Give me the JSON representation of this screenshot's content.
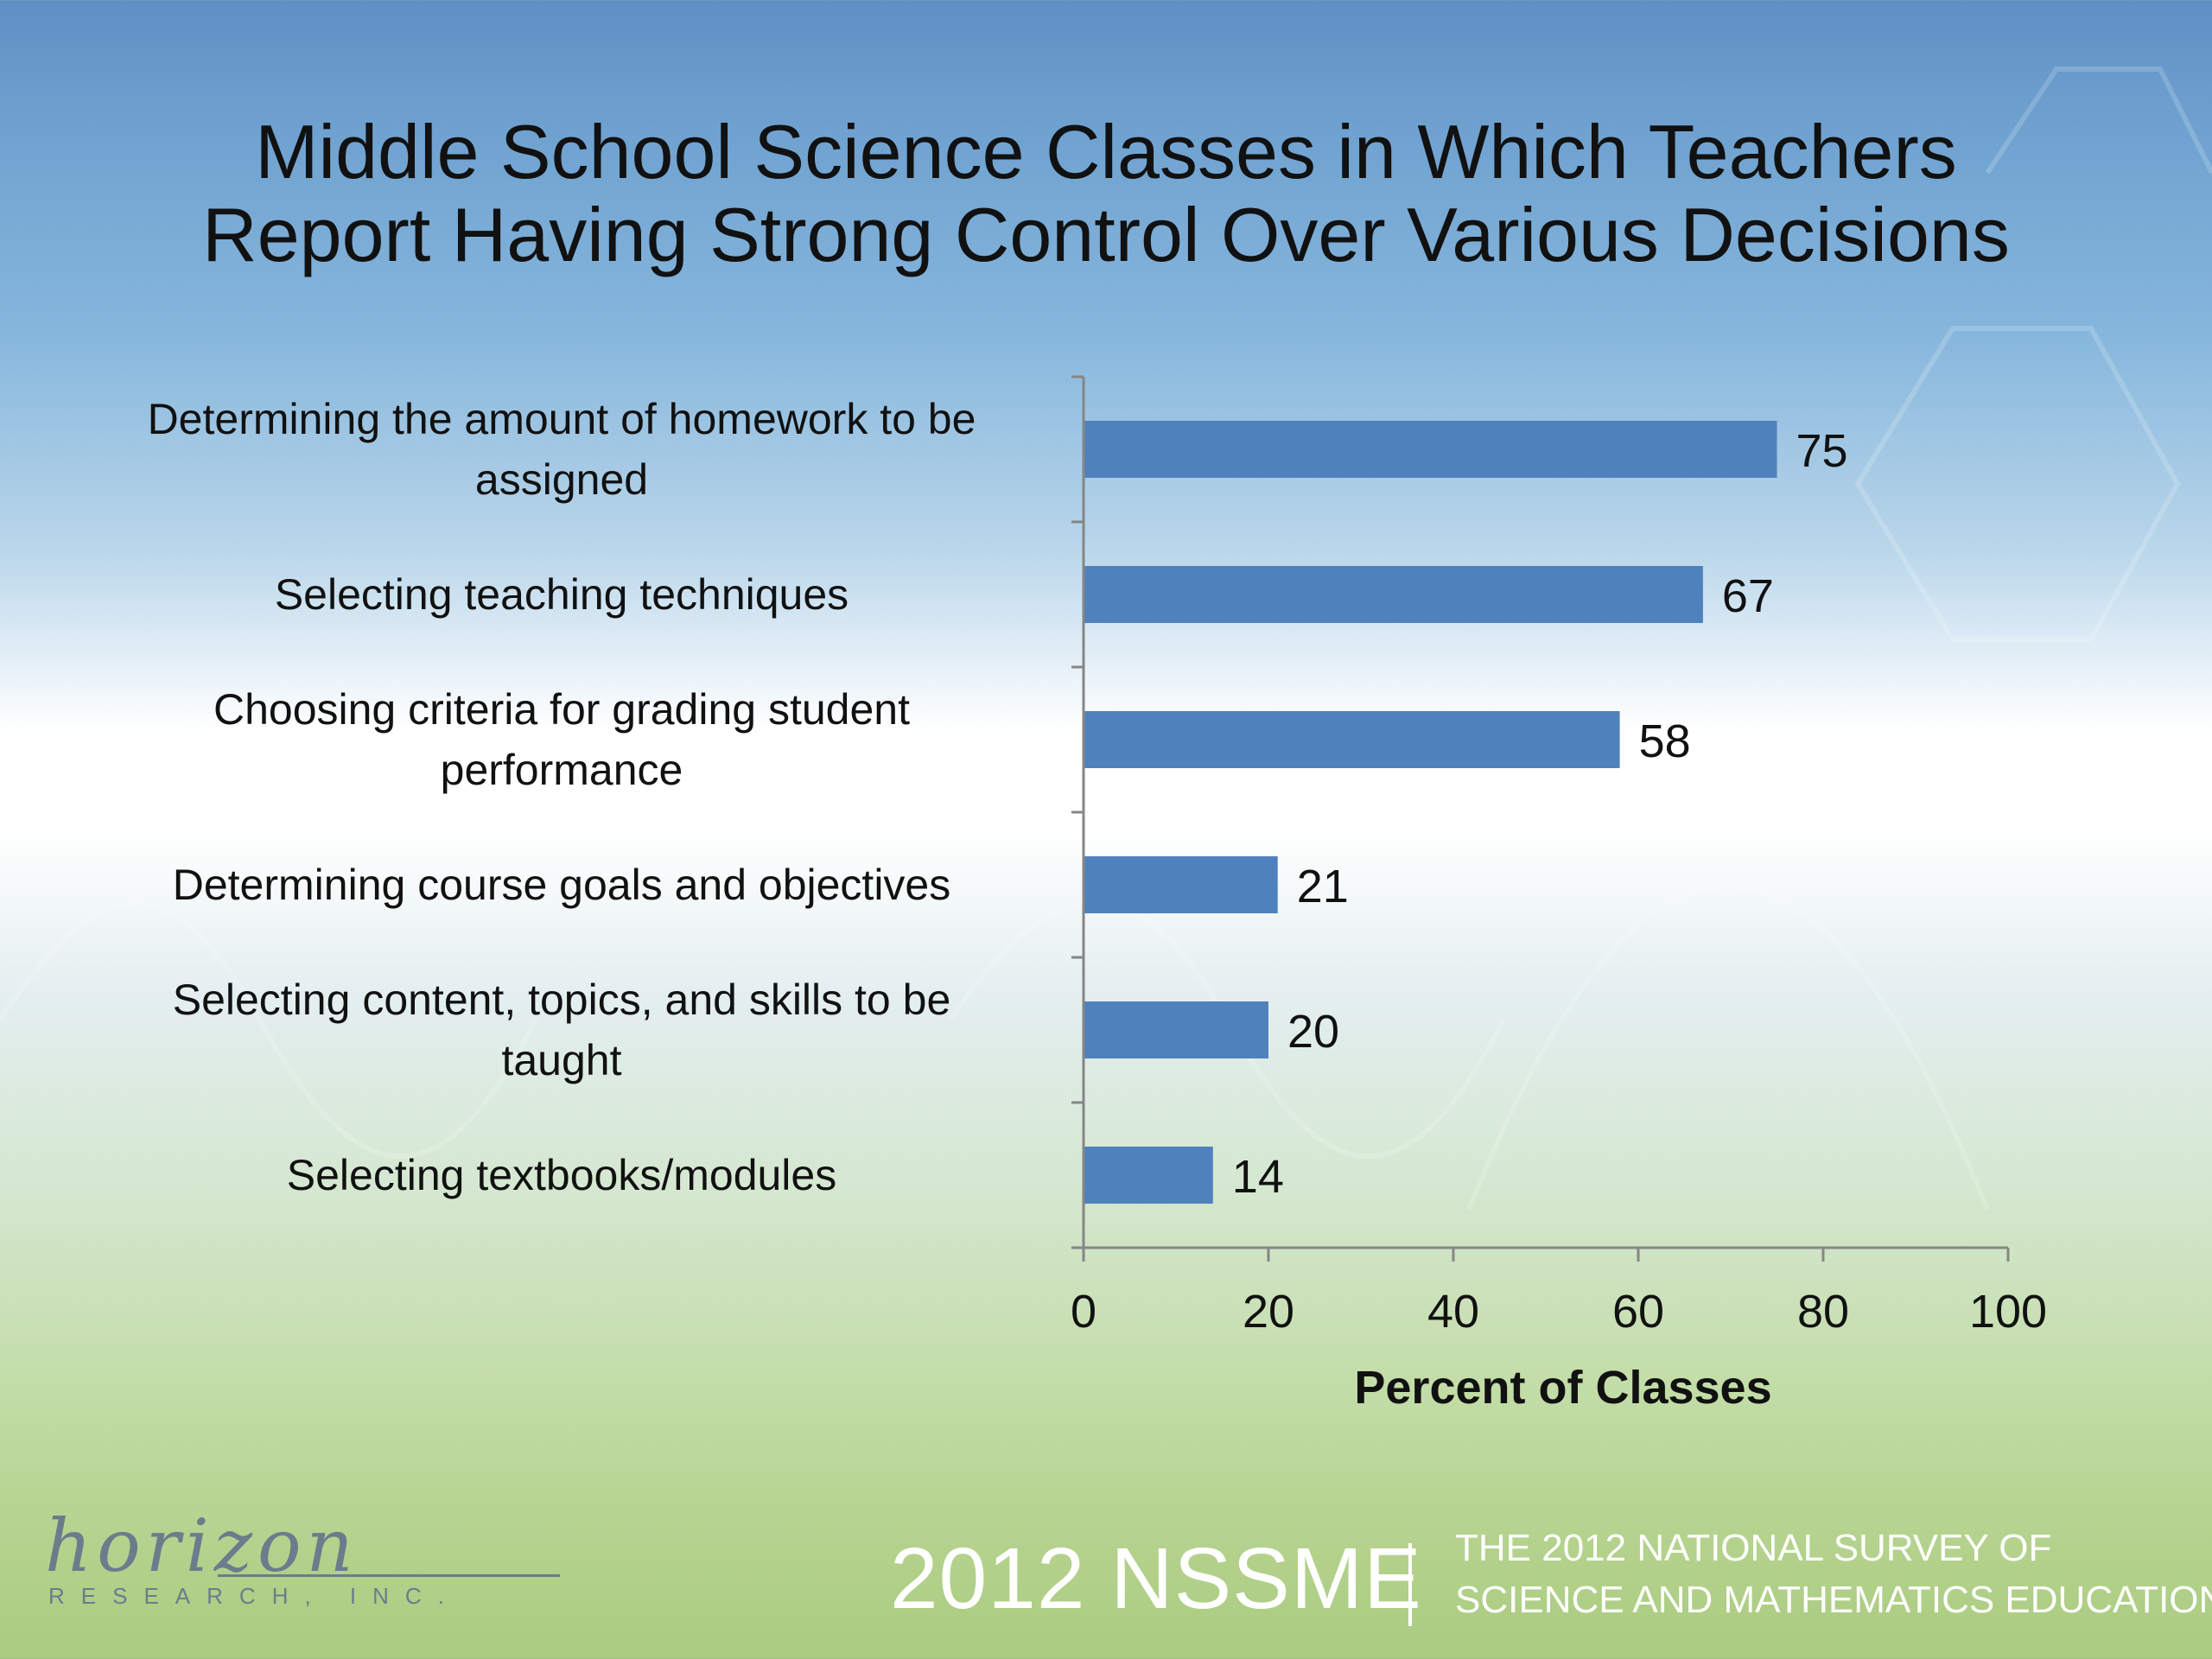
{
  "slide": {
    "title_lines": [
      "Middle School Science Classes in Which Teachers",
      "Report Having Strong Control Over Various Decisions"
    ],
    "logo": {
      "word": "horizon",
      "sub": "RESEARCH, INC."
    },
    "footer": {
      "nssme": "2012 NSSME",
      "survey_lines": [
        "THE 2012 NATIONAL SURVEY OF",
        "SCIENCE AND MATHEMATICS EDUCATION"
      ]
    },
    "colors": {
      "bar": "#4f81bd",
      "axis": "#868686",
      "text": "#111111"
    }
  },
  "chart_data": {
    "type": "bar",
    "orientation": "horizontal",
    "categories": [
      "Determining the amount of homework to be assigned",
      "Selecting teaching techniques",
      "Choosing criteria for grading student performance",
      "Determining course goals and objectives",
      "Selecting content, topics, and skills to be taught",
      "Selecting textbooks/modules"
    ],
    "category_label_lines": [
      [
        "Determining the amount of homework to be",
        "assigned"
      ],
      [
        "Selecting teaching techniques"
      ],
      [
        "Choosing criteria for grading student",
        "performance"
      ],
      [
        "Determining course goals and objectives"
      ],
      [
        "Selecting content, topics, and skills to be",
        "taught"
      ],
      [
        "Selecting textbooks/modules"
      ]
    ],
    "values": [
      75,
      67,
      58,
      21,
      20,
      14
    ],
    "data_labels": [
      "75",
      "67",
      "58",
      "21",
      "20",
      "14"
    ],
    "xlabel": "Percent of Classes",
    "xlim": [
      0,
      100
    ],
    "xticks": [
      0,
      20,
      40,
      60,
      80,
      100
    ],
    "xtick_labels": [
      "0",
      "20",
      "40",
      "60",
      "80",
      "100"
    ],
    "grid": false,
    "legend": "none"
  }
}
